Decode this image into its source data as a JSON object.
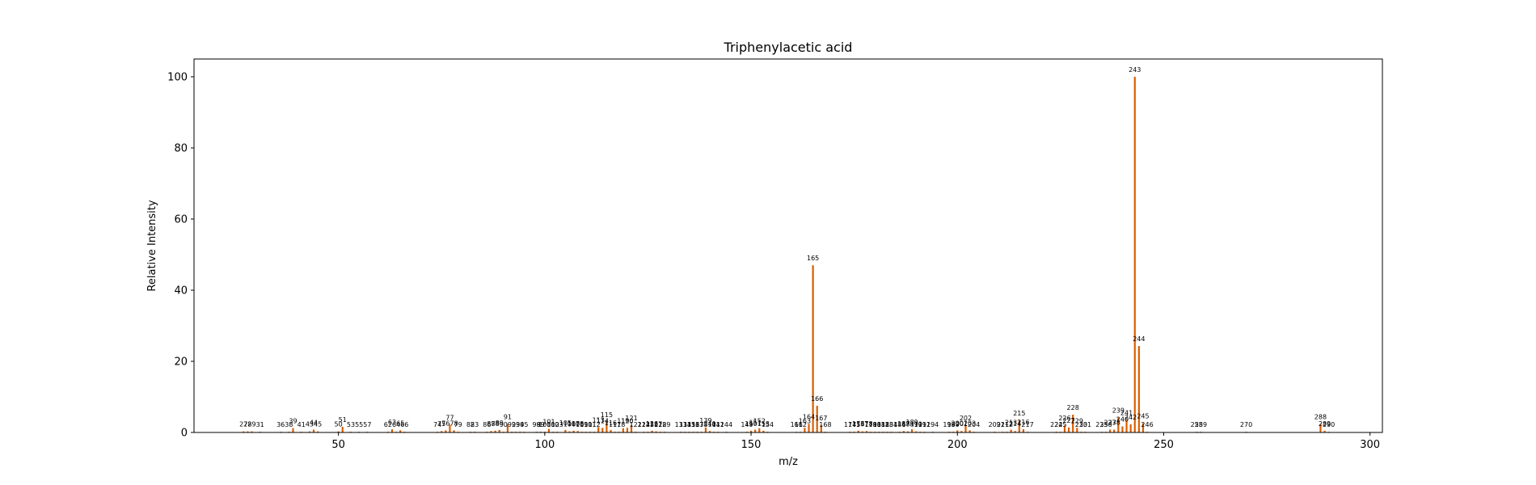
{
  "chart_data": {
    "type": "bar",
    "title": "Triphenylacetic acid",
    "xlabel": "m/z",
    "ylabel": "Relative Intensity",
    "xlim": [
      15,
      303
    ],
    "ylim": [
      0,
      105
    ],
    "xticks": [
      50,
      100,
      150,
      200,
      250,
      300
    ],
    "yticks": [
      0,
      20,
      40,
      60,
      80,
      100
    ],
    "bar_color": "#d95f02",
    "grid": false,
    "peaks": [
      {
        "mz": 27,
        "intensity": 0.3,
        "label": "27"
      },
      {
        "mz": 28,
        "intensity": 0.3,
        "label": "28"
      },
      {
        "mz": 29,
        "intensity": 0.3,
        "label": "29"
      },
      {
        "mz": 31,
        "intensity": 0.2,
        "label": "31"
      },
      {
        "mz": 36,
        "intensity": 0.2,
        "label": "36"
      },
      {
        "mz": 38,
        "intensity": 0.2,
        "label": "38"
      },
      {
        "mz": 39,
        "intensity": 1.2,
        "label": "39"
      },
      {
        "mz": 41,
        "intensity": 0.2,
        "label": "41"
      },
      {
        "mz": 43,
        "intensity": 0.3,
        "label": "43"
      },
      {
        "mz": 44,
        "intensity": 0.8,
        "label": "44"
      },
      {
        "mz": 45,
        "intensity": 0.3,
        "label": "45"
      },
      {
        "mz": 50,
        "intensity": 0.3,
        "label": "50"
      },
      {
        "mz": 51,
        "intensity": 1.6,
        "label": "51"
      },
      {
        "mz": 53,
        "intensity": 0.2,
        "label": "53"
      },
      {
        "mz": 55,
        "intensity": 0.2,
        "label": "55"
      },
      {
        "mz": 57,
        "intensity": 0.2,
        "label": "57"
      },
      {
        "mz": 62,
        "intensity": 0.2,
        "label": "62"
      },
      {
        "mz": 63,
        "intensity": 0.9,
        "label": "63"
      },
      {
        "mz": 64,
        "intensity": 0.2,
        "label": "64"
      },
      {
        "mz": 65,
        "intensity": 0.6,
        "label": "65"
      },
      {
        "mz": 66,
        "intensity": 0.2,
        "label": "66"
      },
      {
        "mz": 74,
        "intensity": 0.2,
        "label": "74"
      },
      {
        "mz": 75,
        "intensity": 0.4,
        "label": "75"
      },
      {
        "mz": 76,
        "intensity": 0.6,
        "label": "76"
      },
      {
        "mz": 77,
        "intensity": 2.2,
        "label": "77"
      },
      {
        "mz": 78,
        "intensity": 0.6,
        "label": "78"
      },
      {
        "mz": 79,
        "intensity": 0.2,
        "label": "79"
      },
      {
        "mz": 82,
        "intensity": 0.2,
        "label": "82"
      },
      {
        "mz": 83,
        "intensity": 0.2,
        "label": "83"
      },
      {
        "mz": 86,
        "intensity": 0.2,
        "label": "86"
      },
      {
        "mz": 87,
        "intensity": 0.4,
        "label": "87"
      },
      {
        "mz": 88,
        "intensity": 0.5,
        "label": "88"
      },
      {
        "mz": 89,
        "intensity": 0.7,
        "label": "89"
      },
      {
        "mz": 90,
        "intensity": 0.2,
        "label": "90"
      },
      {
        "mz": 91,
        "intensity": 2.4,
        "label": "91"
      },
      {
        "mz": 92,
        "intensity": 0.2,
        "label": "92"
      },
      {
        "mz": 93,
        "intensity": 0.2,
        "label": "93"
      },
      {
        "mz": 94,
        "intensity": 0.2,
        "label": "94"
      },
      {
        "mz": 95,
        "intensity": 0.2,
        "label": "95"
      },
      {
        "mz": 98,
        "intensity": 0.2,
        "label": "98"
      },
      {
        "mz": 99,
        "intensity": 0.2,
        "label": "99"
      },
      {
        "mz": 100,
        "intensity": 0.2,
        "label": "100"
      },
      {
        "mz": 101,
        "intensity": 1.0,
        "label": "101"
      },
      {
        "mz": 102,
        "intensity": 0.2,
        "label": "102"
      },
      {
        "mz": 103,
        "intensity": 0.2,
        "label": "103"
      },
      {
        "mz": 105,
        "intensity": 0.7,
        "label": "105"
      },
      {
        "mz": 106,
        "intensity": 0.3,
        "label": "106"
      },
      {
        "mz": 107,
        "intensity": 0.5,
        "label": "107"
      },
      {
        "mz": 108,
        "intensity": 0.4,
        "label": "108"
      },
      {
        "mz": 109,
        "intensity": 0.2,
        "label": "109"
      },
      {
        "mz": 110,
        "intensity": 0.2,
        "label": "110"
      },
      {
        "mz": 111,
        "intensity": 0.2,
        "label": "111"
      },
      {
        "mz": 112,
        "intensity": 0.2,
        "label": "112"
      },
      {
        "mz": 113,
        "intensity": 1.5,
        "label": "113"
      },
      {
        "mz": 114,
        "intensity": 1.3,
        "label": "114"
      },
      {
        "mz": 115,
        "intensity": 2.9,
        "label": "115"
      },
      {
        "mz": 116,
        "intensity": 0.7,
        "label": "116"
      },
      {
        "mz": 117,
        "intensity": 0.2,
        "label": "117"
      },
      {
        "mz": 118,
        "intensity": 0.2,
        "label": "118"
      },
      {
        "mz": 119,
        "intensity": 1.2,
        "label": "119"
      },
      {
        "mz": 120,
        "intensity": 1.3,
        "label": "120"
      },
      {
        "mz": 121,
        "intensity": 2.1,
        "label": "121"
      },
      {
        "mz": 122,
        "intensity": 0.2,
        "label": "122"
      },
      {
        "mz": 124,
        "intensity": 0.2,
        "label": "124"
      },
      {
        "mz": 125,
        "intensity": 0.2,
        "label": "125"
      },
      {
        "mz": 126,
        "intensity": 0.5,
        "label": "126"
      },
      {
        "mz": 127,
        "intensity": 0.3,
        "label": "127"
      },
      {
        "mz": 128,
        "intensity": 0.2,
        "label": "128"
      },
      {
        "mz": 129,
        "intensity": 0.2,
        "label": "129"
      },
      {
        "mz": 133,
        "intensity": 0.2,
        "label": "133"
      },
      {
        "mz": 134,
        "intensity": 0.2,
        "label": "134"
      },
      {
        "mz": 135,
        "intensity": 0.2,
        "label": "135"
      },
      {
        "mz": 136,
        "intensity": 0.2,
        "label": "136"
      },
      {
        "mz": 137,
        "intensity": 0.2,
        "label": "137"
      },
      {
        "mz": 138,
        "intensity": 0.2,
        "label": "138"
      },
      {
        "mz": 139,
        "intensity": 1.4,
        "label": "139"
      },
      {
        "mz": 140,
        "intensity": 0.4,
        "label": "140"
      },
      {
        "mz": 141,
        "intensity": 0.2,
        "label": "141"
      },
      {
        "mz": 142,
        "intensity": 0.2,
        "label": "142"
      },
      {
        "mz": 144,
        "intensity": 0.2,
        "label": "144"
      },
      {
        "mz": 149,
        "intensity": 0.2,
        "label": "149"
      },
      {
        "mz": 150,
        "intensity": 0.5,
        "label": "150"
      },
      {
        "mz": 151,
        "intensity": 0.8,
        "label": "151"
      },
      {
        "mz": 152,
        "intensity": 1.2,
        "label": "152"
      },
      {
        "mz": 153,
        "intensity": 0.5,
        "label": "153"
      },
      {
        "mz": 154,
        "intensity": 0.2,
        "label": "154"
      },
      {
        "mz": 161,
        "intensity": 0.2,
        "label": "161"
      },
      {
        "mz": 162,
        "intensity": 0.2,
        "label": "162"
      },
      {
        "mz": 163,
        "intensity": 1.3,
        "label": "163"
      },
      {
        "mz": 164,
        "intensity": 2.4,
        "label": "164"
      },
      {
        "mz": 165,
        "intensity": 47.0,
        "label": "165"
      },
      {
        "mz": 166,
        "intensity": 7.5,
        "label": "166"
      },
      {
        "mz": 167,
        "intensity": 2.1,
        "label": "167"
      },
      {
        "mz": 168,
        "intensity": 0.2,
        "label": "168"
      },
      {
        "mz": 174,
        "intensity": 0.2,
        "label": "174"
      },
      {
        "mz": 175,
        "intensity": 0.2,
        "label": "175"
      },
      {
        "mz": 176,
        "intensity": 0.5,
        "label": "176"
      },
      {
        "mz": 177,
        "intensity": 0.3,
        "label": "177"
      },
      {
        "mz": 178,
        "intensity": 0.4,
        "label": "178"
      },
      {
        "mz": 179,
        "intensity": 0.2,
        "label": "179"
      },
      {
        "mz": 180,
        "intensity": 0.2,
        "label": "180"
      },
      {
        "mz": 181,
        "intensity": 0.2,
        "label": "181"
      },
      {
        "mz": 182,
        "intensity": 0.2,
        "label": "182"
      },
      {
        "mz": 183,
        "intensity": 0.2,
        "label": "183"
      },
      {
        "mz": 184,
        "intensity": 0.2,
        "label": "184"
      },
      {
        "mz": 186,
        "intensity": 0.2,
        "label": "186"
      },
      {
        "mz": 187,
        "intensity": 0.4,
        "label": "187"
      },
      {
        "mz": 188,
        "intensity": 0.3,
        "label": "188"
      },
      {
        "mz": 189,
        "intensity": 0.9,
        "label": "189"
      },
      {
        "mz": 190,
        "intensity": 0.3,
        "label": "190"
      },
      {
        "mz": 191,
        "intensity": 0.2,
        "label": "191"
      },
      {
        "mz": 192,
        "intensity": 0.2,
        "label": "192"
      },
      {
        "mz": 194,
        "intensity": 0.2,
        "label": "194"
      },
      {
        "mz": 198,
        "intensity": 0.2,
        "label": "198"
      },
      {
        "mz": 199,
        "intensity": 0.2,
        "label": "199"
      },
      {
        "mz": 200,
        "intensity": 0.6,
        "label": "200"
      },
      {
        "mz": 201,
        "intensity": 0.4,
        "label": "201"
      },
      {
        "mz": 202,
        "intensity": 2.0,
        "label": "202"
      },
      {
        "mz": 203,
        "intensity": 0.6,
        "label": "203"
      },
      {
        "mz": 204,
        "intensity": 0.2,
        "label": "204"
      },
      {
        "mz": 209,
        "intensity": 0.2,
        "label": "209"
      },
      {
        "mz": 211,
        "intensity": 0.2,
        "label": "211"
      },
      {
        "mz": 212,
        "intensity": 0.2,
        "label": "212"
      },
      {
        "mz": 213,
        "intensity": 0.8,
        "label": "213"
      },
      {
        "mz": 214,
        "intensity": 0.4,
        "label": "214"
      },
      {
        "mz": 215,
        "intensity": 3.4,
        "label": "215"
      },
      {
        "mz": 216,
        "intensity": 0.9,
        "label": "216"
      },
      {
        "mz": 217,
        "intensity": 0.2,
        "label": "217"
      },
      {
        "mz": 224,
        "intensity": 0.2,
        "label": "224"
      },
      {
        "mz": 225,
        "intensity": 0.2,
        "label": "225"
      },
      {
        "mz": 226,
        "intensity": 2.0,
        "label": "226"
      },
      {
        "mz": 227,
        "intensity": 1.4,
        "label": "227"
      },
      {
        "mz": 228,
        "intensity": 5.0,
        "label": "228"
      },
      {
        "mz": 229,
        "intensity": 1.3,
        "label": "229"
      },
      {
        "mz": 230,
        "intensity": 0.2,
        "label": "230"
      },
      {
        "mz": 231,
        "intensity": 0.2,
        "label": "231"
      },
      {
        "mz": 235,
        "intensity": 0.2,
        "label": "235"
      },
      {
        "mz": 236,
        "intensity": 0.2,
        "label": "236"
      },
      {
        "mz": 237,
        "intensity": 0.8,
        "label": "237"
      },
      {
        "mz": 238,
        "intensity": 0.8,
        "label": "238"
      },
      {
        "mz": 239,
        "intensity": 4.2,
        "label": "239"
      },
      {
        "mz": 240,
        "intensity": 1.7,
        "label": "240"
      },
      {
        "mz": 241,
        "intensity": 3.5,
        "label": "241"
      },
      {
        "mz": 242,
        "intensity": 2.3,
        "label": "242"
      },
      {
        "mz": 243,
        "intensity": 100.0,
        "label": "243"
      },
      {
        "mz": 244,
        "intensity": 24.3,
        "label": "244"
      },
      {
        "mz": 245,
        "intensity": 2.6,
        "label": "245"
      },
      {
        "mz": 246,
        "intensity": 0.2,
        "label": "246"
      },
      {
        "mz": 258,
        "intensity": 0.2,
        "label": "258"
      },
      {
        "mz": 259,
        "intensity": 0.2,
        "label": "259"
      },
      {
        "mz": 270,
        "intensity": 0.2,
        "label": "270"
      },
      {
        "mz": 288,
        "intensity": 2.4,
        "label": "288"
      },
      {
        "mz": 289,
        "intensity": 0.5,
        "label": "289"
      },
      {
        "mz": 290,
        "intensity": 0.2,
        "label": "290"
      }
    ]
  }
}
